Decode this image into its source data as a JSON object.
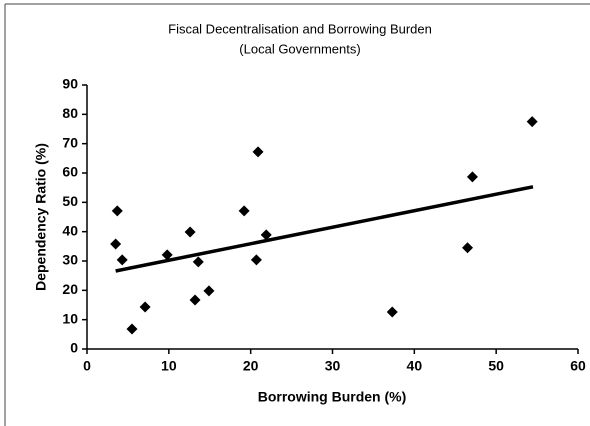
{
  "chart_data": {
    "type": "scatter",
    "title": "Fiscal Decentralisation and Borrowing Burden",
    "subtitle": "(Local Governments)",
    "x_label": "Borrowing Burden (%)",
    "y_label": "Dependency Ratio (%)",
    "xlim": [
      0,
      60
    ],
    "xticks": [
      0,
      10,
      20,
      30,
      40,
      50,
      60
    ],
    "ylim": [
      0,
      90
    ],
    "yticks": [
      0,
      10,
      20,
      30,
      40,
      50,
      60,
      70,
      80,
      90
    ],
    "grid": false,
    "series": [
      {
        "color": "#000000",
        "x": [
          3.7,
          3.5,
          4.3,
          5.5,
          7.1,
          9.8,
          12.6,
          13.6,
          13.2,
          14.9,
          19.2,
          20.9,
          20.7,
          21.9,
          37.3,
          46.5,
          47.1,
          54.4
        ],
        "values": [
          47.1,
          35.8,
          30.4,
          6.8,
          14.3,
          32.1,
          39.9,
          29.7,
          16.7,
          19.8,
          47.1,
          67.2,
          30.4,
          38.9,
          12.6,
          34.5,
          58.7,
          77.5
        ]
      }
    ],
    "trendline": {
      "color": "#000000",
      "x": [
        3.5,
        54.5
      ],
      "values": [
        26.6,
        55.3
      ]
    }
  }
}
